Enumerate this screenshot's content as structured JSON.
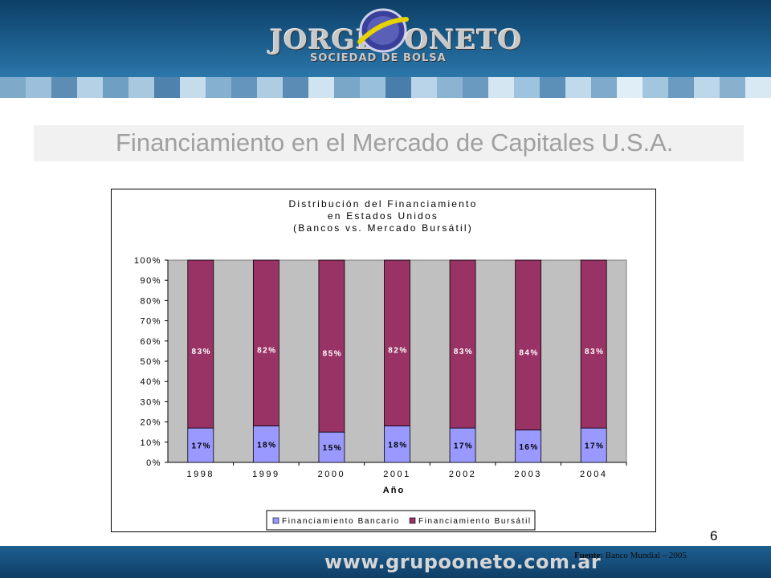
{
  "header": {
    "logo_left": "JORGE",
    "logo_right": "ONETO",
    "logo_sub": "SOCIEDAD DE BOLSA"
  },
  "slide": {
    "title": "Financiamiento en el Mercado de Capitales U.S.A.",
    "page_number": "6"
  },
  "footer": {
    "url": "www.grupooneto.com.ar",
    "source_label": "Fuente:",
    "source_text": "Banco Mundial – 2005"
  },
  "colors": {
    "bank": "#9999ff",
    "market": "#993366",
    "plot_bg": "#c0c0c0",
    "title_gray": "#a0a0a0"
  },
  "chart_data": {
    "type": "bar",
    "stacked": true,
    "title_lines": [
      "Distribución del Financiamiento",
      "en Estados Unidos",
      "(Bancos vs. Mercado Bursátil)"
    ],
    "xlabel": "Año",
    "ylabel": "",
    "ylim": [
      0,
      100
    ],
    "yticks": [
      "0%",
      "10%",
      "20%",
      "30%",
      "40%",
      "50%",
      "60%",
      "70%",
      "80%",
      "90%",
      "100%"
    ],
    "categories": [
      "1998",
      "1999",
      "2000",
      "2001",
      "2002",
      "2003",
      "2004"
    ],
    "series": [
      {
        "name": "Financiamiento Bancario",
        "values": [
          17,
          18,
          15,
          18,
          17,
          16,
          17
        ],
        "labels": [
          "17%",
          "18%",
          "15%",
          "18%",
          "17%",
          "16%",
          "17%"
        ]
      },
      {
        "name": "Financiamiento Bursátil",
        "values": [
          83,
          82,
          85,
          82,
          83,
          84,
          83
        ],
        "labels": [
          "83%",
          "82%",
          "85%",
          "82%",
          "83%",
          "84%",
          "83%"
        ]
      }
    ],
    "legend_position": "bottom",
    "grid": false
  }
}
